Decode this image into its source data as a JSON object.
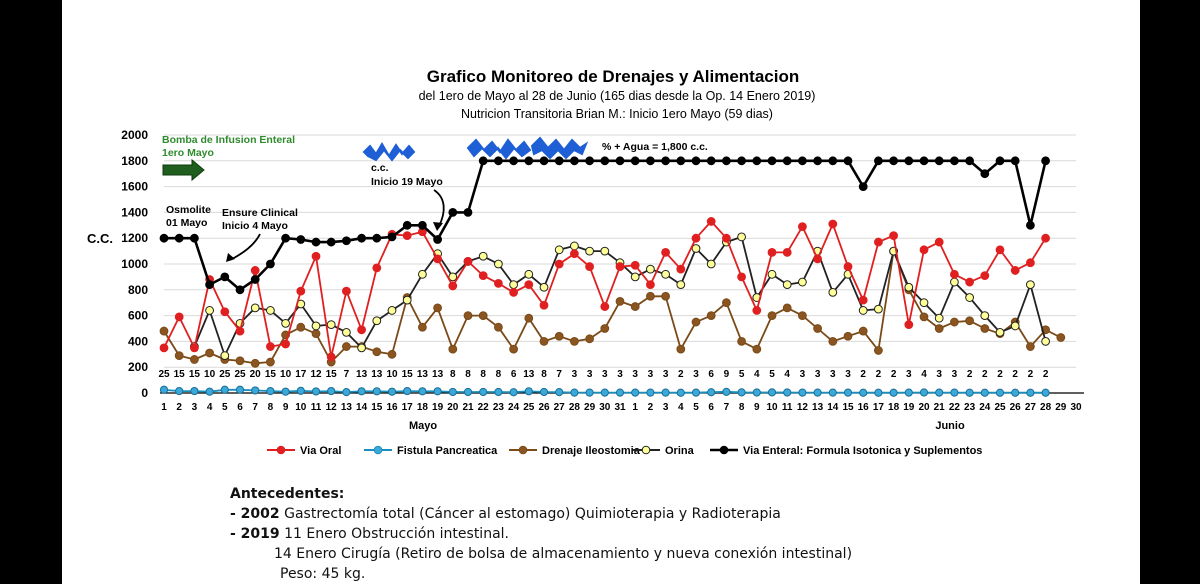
{
  "chart_data": {
    "type": "line",
    "title": "Grafico Monitoreo de Drenajes y Alimentacion",
    "subtitle_lines": [
      "del 1ero de Mayo al 28 de Junio (165 dias desde la Op. 14 Enero 2019)",
      "Nutricion Transitoria Brian M.:  Inicio 1ero Mayo  (59 dias)"
    ],
    "ylabel": "C.C.",
    "ylim": [
      0,
      2000
    ],
    "yticks": [
      0,
      200,
      400,
      600,
      800,
      1000,
      1200,
      1400,
      1600,
      1800,
      2000
    ],
    "x_ticks": [
      "1",
      "2",
      "3",
      "4",
      "5",
      "6",
      "7",
      "8",
      "9",
      "10",
      "11",
      "12",
      "13",
      "14",
      "15",
      "16",
      "17",
      "18",
      "19",
      "20",
      "21",
      "22",
      "23",
      "24",
      "25",
      "26",
      "27",
      "28",
      "29",
      "30",
      "31",
      "1",
      "2",
      "3",
      "4",
      "5",
      "6",
      "7",
      "8",
      "9",
      "10",
      "11",
      "12",
      "13",
      "14",
      "15",
      "16",
      "17",
      "18",
      "19",
      "20",
      "21",
      "22",
      "23",
      "24",
      "25",
      "26",
      "27",
      "28",
      "29",
      "30"
    ],
    "month_labels": [
      "Mayo",
      "Junio"
    ],
    "grid": "horizontal",
    "legend_position": "bottom",
    "series": [
      {
        "name": "Via Oral",
        "color": "#e02020",
        "marker_fill": "#e02020",
        "values": [
          350,
          590,
          350,
          880,
          630,
          480,
          950,
          360,
          380,
          790,
          1060,
          280,
          790,
          490,
          970,
          1230,
          1220,
          1250,
          1040,
          830,
          1020,
          910,
          850,
          780,
          840,
          680,
          1000,
          1080,
          980,
          670,
          980,
          990,
          840,
          1090,
          960,
          1200,
          1330,
          1200,
          900,
          640,
          1090,
          1090,
          1290,
          1040,
          1310,
          980,
          720,
          1170,
          1220,
          530,
          1110,
          1170,
          920,
          860,
          910,
          1110,
          950,
          1010,
          1200,
          null
        ]
      },
      {
        "name": "Fistula Pancreatica",
        "color": "#1a8fbf",
        "marker_fill": "#3aa8d8",
        "values": [
          25,
          15,
          15,
          10,
          25,
          25,
          20,
          15,
          10,
          17,
          12,
          15,
          7,
          13,
          13,
          10,
          15,
          13,
          13,
          8,
          8,
          8,
          8,
          6,
          13,
          8,
          7,
          3,
          3,
          3,
          3,
          3,
          3,
          3,
          2,
          3,
          6,
          9,
          5,
          4,
          5,
          4,
          3,
          3,
          3,
          3,
          2,
          2,
          2,
          3,
          4,
          3,
          3,
          2,
          2,
          2,
          2,
          2,
          2,
          null
        ]
      },
      {
        "name": "Drenaje Ileostomia",
        "color": "#7a4a18",
        "marker_fill": "#8a5520",
        "values": [
          480,
          290,
          260,
          310,
          260,
          250,
          230,
          240,
          450,
          510,
          460,
          240,
          360,
          360,
          320,
          300,
          740,
          510,
          660,
          340,
          600,
          600,
          510,
          340,
          580,
          400,
          440,
          400,
          420,
          500,
          710,
          670,
          750,
          750,
          340,
          550,
          600,
          700,
          400,
          340,
          600,
          660,
          600,
          500,
          400,
          440,
          480,
          330,
          1100,
          800,
          590,
          500,
          550,
          560,
          500,
          460,
          550,
          360,
          490,
          430
        ]
      },
      {
        "name": "Orina",
        "color": "#222222",
        "marker_fill": "#ffff99",
        "values": [
          null,
          null,
          360,
          640,
          290,
          540,
          660,
          640,
          540,
          690,
          520,
          530,
          470,
          350,
          560,
          640,
          720,
          920,
          1080,
          900,
          1020,
          1060,
          1000,
          840,
          920,
          820,
          1110,
          1140,
          1100,
          1100,
          1010,
          900,
          960,
          920,
          840,
          1120,
          1000,
          1170,
          1210,
          740,
          920,
          840,
          860,
          1100,
          780,
          920,
          640,
          650,
          1100,
          820,
          700,
          580,
          860,
          740,
          600,
          470,
          520,
          840,
          400,
          null
        ]
      },
      {
        "name": "Via Enteral: Formula Isotonica y Suplementos",
        "color": "#000000",
        "marker_fill": "#000000",
        "values": [
          1200,
          1200,
          1200,
          840,
          900,
          800,
          880,
          1000,
          1200,
          1190,
          1170,
          1170,
          1180,
          1200,
          1200,
          1210,
          1300,
          1300,
          1190,
          1400,
          1400,
          1800,
          1800,
          1800,
          1800,
          1800,
          1800,
          1800,
          1800,
          1800,
          1800,
          1800,
          1800,
          1800,
          1800,
          1800,
          1800,
          1800,
          1800,
          1800,
          1800,
          1800,
          1800,
          1800,
          1800,
          1800,
          1600,
          1800,
          1800,
          1800,
          1800,
          1800,
          1800,
          1800,
          1700,
          1800,
          1800,
          1300,
          1800,
          null
        ]
      }
    ],
    "annotations": [
      {
        "text_lines": [
          "Bomba de Infusion Enteral",
          "1ero Mayo"
        ],
        "color": "#2e8b2e"
      },
      {
        "text_lines": [
          "Osmolite",
          "01 Mayo"
        ],
        "color": "#000000"
      },
      {
        "text_lines": [
          "Ensure Clinical",
          "Inicio 4 Mayo"
        ],
        "color": "#000000"
      },
      {
        "text_lines": [
          "c.c.",
          "Inicio 19 Mayo"
        ],
        "color": "#000000"
      },
      {
        "text_lines": [
          "% + Agua = 1,800 c.c."
        ],
        "color": "#000000"
      }
    ]
  },
  "notes": {
    "heading": "Antecedentes:",
    "line1_year": "- 2002",
    "line1_text": " Gastrectomía total (Cáncer al estomago) Quimioterapia y Radioterapia",
    "line2_year": "- 2019",
    "line2_text": " 11 Enero Obstrucción intestinal.",
    "line3_text": "14 Enero Cirugía (Retiro de bolsa de almacenamiento y nueva conexión intestinal)",
    "line4_text": "Peso: 45 kg."
  },
  "colors": {
    "page_border": "#000000",
    "scribble": "#1f5fd6",
    "arrow": "#1f5e1f"
  }
}
